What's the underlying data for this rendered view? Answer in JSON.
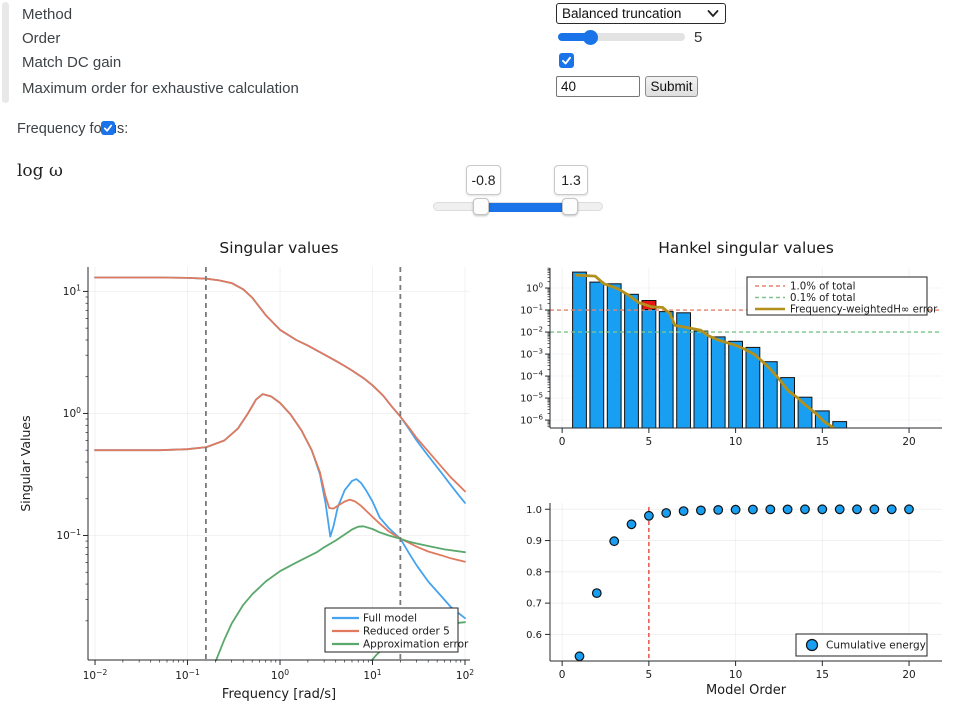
{
  "form": {
    "method_label": "Method",
    "method_value": "Balanced truncation",
    "order_label": "Order",
    "order_value": "5",
    "match_label": "Match DC gain",
    "match_checked": true,
    "max_label": "Maximum order for exhaustive calculation",
    "max_value": "40",
    "submit_label": "Submit"
  },
  "frequency_focus": {
    "label": "Frequency focus:",
    "checked": true
  },
  "omega": {
    "label": "log ω",
    "low": "-0.8",
    "high": "1.3"
  },
  "accent_color": "#1a73e8",
  "chart_data": [
    {
      "id": "sigma",
      "type": "line",
      "title": "Singular values",
      "xlabel": "Frequency [rad/s]",
      "ylabel": "Singular Values",
      "xscale": "log",
      "yscale": "log",
      "xlim_log": [
        -2.076,
        2.054
      ],
      "ylim_log": [
        -2.02,
        1.2
      ],
      "xticks": [
        -2,
        -1,
        0,
        1,
        2
      ],
      "yticks": [
        -1,
        0,
        1
      ],
      "vlines": {
        "values": [
          0.158,
          20
        ],
        "color": "#7a7a7a",
        "note": "frequency focus band 10^-0.8 to 10^1.3"
      },
      "legend_box": [
        325,
        608,
        133,
        44
      ],
      "legend_entries": [
        {
          "label": "Full model",
          "color": "#45a3ef"
        },
        {
          "label": "Reduced order 5",
          "color": "#df7a5e"
        },
        {
          "label": "Approximation error",
          "color": "#5aa86c"
        }
      ],
      "series": [
        {
          "name": "Full model sigma1",
          "color": "#45a3ef",
          "points": [
            [
              0.01,
              13
            ],
            [
              0.05,
              13
            ],
            [
              0.1,
              12.9
            ],
            [
              0.16,
              12.7
            ],
            [
              0.22,
              12.3
            ],
            [
              0.3,
              11.7
            ],
            [
              0.4,
              10.4
            ],
            [
              0.5,
              8.9
            ],
            [
              0.7,
              6.4
            ],
            [
              1,
              4.85
            ],
            [
              1.5,
              4.0
            ],
            [
              2,
              3.6
            ],
            [
              3,
              3.05
            ],
            [
              4,
              2.7
            ],
            [
              5,
              2.45
            ],
            [
              6,
              2.25
            ],
            [
              8,
              1.95
            ],
            [
              10,
              1.7
            ],
            [
              13,
              1.4
            ],
            [
              16,
              1.15
            ],
            [
              20,
              0.94
            ],
            [
              25,
              0.74
            ],
            [
              30,
              0.6
            ],
            [
              40,
              0.45
            ],
            [
              55,
              0.33
            ],
            [
              70,
              0.26
            ],
            [
              85,
              0.215
            ],
            [
              100,
              0.185
            ]
          ]
        },
        {
          "name": "Full model sigma2",
          "color": "#45a3ef",
          "points": [
            [
              0.01,
              0.5
            ],
            [
              0.05,
              0.5
            ],
            [
              0.1,
              0.51
            ],
            [
              0.16,
              0.53
            ],
            [
              0.25,
              0.6
            ],
            [
              0.35,
              0.75
            ],
            [
              0.45,
              1.0
            ],
            [
              0.55,
              1.3
            ],
            [
              0.65,
              1.44
            ],
            [
              0.8,
              1.38
            ],
            [
              1,
              1.22
            ],
            [
              1.3,
              0.98
            ],
            [
              1.7,
              0.73
            ],
            [
              2.2,
              0.5
            ],
            [
              2.7,
              0.32
            ],
            [
              3.1,
              0.185
            ],
            [
              3.5,
              0.098
            ],
            [
              3.8,
              0.12
            ],
            [
              4.2,
              0.17
            ],
            [
              5,
              0.235
            ],
            [
              6,
              0.28
            ],
            [
              6.7,
              0.29
            ],
            [
              7.5,
              0.27
            ],
            [
              8.5,
              0.235
            ],
            [
              10,
              0.19
            ],
            [
              12,
              0.14
            ],
            [
              15,
              0.115
            ],
            [
              20,
              0.094
            ],
            [
              25,
              0.071
            ],
            [
              30,
              0.057
            ],
            [
              40,
              0.042
            ],
            [
              55,
              0.032
            ],
            [
              70,
              0.026
            ],
            [
              100,
              0.021
            ]
          ]
        },
        {
          "name": "Reduced order 5 sigma1",
          "color": "#df7a5e",
          "points": [
            [
              0.01,
              13
            ],
            [
              0.05,
              13
            ],
            [
              0.1,
              12.9
            ],
            [
              0.16,
              12.7
            ],
            [
              0.22,
              12.3
            ],
            [
              0.3,
              11.7
            ],
            [
              0.4,
              10.4
            ],
            [
              0.5,
              8.9
            ],
            [
              0.7,
              6.4
            ],
            [
              1,
              4.85
            ],
            [
              1.5,
              4.0
            ],
            [
              2,
              3.6
            ],
            [
              3,
              3.05
            ],
            [
              4,
              2.7
            ],
            [
              5,
              2.45
            ],
            [
              6,
              2.25
            ],
            [
              8,
              1.95
            ],
            [
              10,
              1.7
            ],
            [
              13,
              1.4
            ],
            [
              16,
              1.15
            ],
            [
              20,
              0.94
            ],
            [
              25,
              0.76
            ],
            [
              30,
              0.63
            ],
            [
              40,
              0.49
            ],
            [
              55,
              0.37
            ],
            [
              70,
              0.3
            ],
            [
              85,
              0.26
            ],
            [
              100,
              0.23
            ]
          ]
        },
        {
          "name": "Reduced order 5 sigma2",
          "color": "#df7a5e",
          "points": [
            [
              0.01,
              0.5
            ],
            [
              0.05,
              0.5
            ],
            [
              0.1,
              0.51
            ],
            [
              0.16,
              0.53
            ],
            [
              0.25,
              0.6
            ],
            [
              0.35,
              0.75
            ],
            [
              0.45,
              1.0
            ],
            [
              0.55,
              1.3
            ],
            [
              0.65,
              1.44
            ],
            [
              0.8,
              1.38
            ],
            [
              1,
              1.22
            ],
            [
              1.3,
              0.98
            ],
            [
              1.7,
              0.73
            ],
            [
              2.2,
              0.5
            ],
            [
              2.7,
              0.33
            ],
            [
              3.1,
              0.21
            ],
            [
              3.4,
              0.168
            ],
            [
              3.8,
              0.166
            ],
            [
              4.2,
              0.175
            ],
            [
              5,
              0.19
            ],
            [
              5.7,
              0.197
            ],
            [
              6.5,
              0.19
            ],
            [
              7.5,
              0.175
            ],
            [
              8.5,
              0.16
            ],
            [
              10,
              0.142
            ],
            [
              12,
              0.125
            ],
            [
              15,
              0.108
            ],
            [
              20,
              0.094
            ],
            [
              25,
              0.087
            ],
            [
              30,
              0.081
            ],
            [
              40,
              0.074
            ],
            [
              55,
              0.069
            ],
            [
              70,
              0.065
            ],
            [
              100,
              0.061
            ]
          ]
        },
        {
          "name": "Approximation error sigma1",
          "color": "#5aa86c",
          "points": [
            [
              0.2,
              0.0092
            ],
            [
              0.25,
              0.014
            ],
            [
              0.3,
              0.019
            ],
            [
              0.4,
              0.027
            ],
            [
              0.5,
              0.033
            ],
            [
              0.7,
              0.042
            ],
            [
              1,
              0.051
            ],
            [
              1.5,
              0.06
            ],
            [
              2,
              0.067
            ],
            [
              2.5,
              0.073
            ],
            [
              3,
              0.08
            ],
            [
              4,
              0.091
            ],
            [
              5,
              0.102
            ],
            [
              6,
              0.112
            ],
            [
              7,
              0.118
            ],
            [
              8,
              0.119
            ],
            [
              10,
              0.113
            ],
            [
              12,
              0.106
            ],
            [
              15,
              0.1
            ],
            [
              20,
              0.094
            ],
            [
              25,
              0.089
            ],
            [
              30,
              0.086
            ],
            [
              40,
              0.082
            ],
            [
              60,
              0.077
            ],
            [
              100,
              0.073
            ]
          ]
        },
        {
          "name": "Approximation error sigma2",
          "color": "#5aa86c",
          "points": [
            [
              9,
              0.0088
            ],
            [
              11,
              0.0105
            ],
            [
              14,
              0.0125
            ],
            [
              20,
              0.015
            ],
            [
              30,
              0.017
            ],
            [
              50,
              0.0185
            ],
            [
              100,
              0.0195
            ]
          ]
        }
      ]
    },
    {
      "id": "hankel",
      "type": "bar",
      "title": "Hankel singular values",
      "yscale": "log",
      "xlim": [
        -0.7,
        21.9
      ],
      "ylim_log": [
        -6.36,
        0.91
      ],
      "xticks": [
        0,
        5,
        10,
        15,
        20
      ],
      "ytick_exps": [
        0,
        -1,
        -2,
        -3,
        -4,
        -5,
        -6
      ],
      "bars": {
        "color": "#189ff2",
        "x": [
          1,
          2,
          3,
          4,
          5,
          6,
          7,
          8,
          9,
          10,
          11,
          12,
          13,
          14,
          15,
          16
        ],
        "values": [
          5.3,
          1.85,
          1.55,
          0.52,
          0.27,
          0.085,
          0.075,
          0.011,
          0.006,
          0.0038,
          0.002,
          0.00045,
          8.5e-05,
          1.1e-05,
          2.6e-06,
          8.5e-07
        ]
      },
      "highlight_bar": {
        "x": 5,
        "top": 0.27,
        "bottom": 0.105,
        "color": "#e91414"
      },
      "hlines": [
        {
          "value": 0.1,
          "label": "1.0% of total",
          "color": "#e5836b"
        },
        {
          "value": 0.01,
          "label": "0.1% of total",
          "color": "#7cc48b"
        }
      ],
      "error_line": {
        "label": "Frequency-weightedH∞ error",
        "color": "#b3901c",
        "points": [
          [
            0.8,
            3.85
          ],
          [
            1.9,
            3.5
          ],
          [
            2.4,
            1.58
          ],
          [
            3.2,
            0.93
          ],
          [
            3.8,
            0.49
          ],
          [
            4.4,
            0.22
          ],
          [
            5.15,
            0.14
          ],
          [
            5.8,
            0.13
          ],
          [
            6.2,
            0.07
          ],
          [
            6.5,
            0.02
          ],
          [
            7.3,
            0.0155
          ],
          [
            8.0,
            0.012
          ],
          [
            8.4,
            0.007
          ],
          [
            9.05,
            0.0042
          ],
          [
            10,
            0.0025
          ],
          [
            10.5,
            0.0017
          ],
          [
            11.05,
            0.001
          ],
          [
            11.5,
            0.0005
          ],
          [
            12,
            0.00021
          ],
          [
            12.6,
            5.9e-05
          ],
          [
            13.05,
            2.1e-05
          ],
          [
            13.6,
            1e-05
          ],
          [
            14,
            5e-06
          ],
          [
            14.6,
            2.1e-06
          ],
          [
            15.1,
            8.5e-07
          ],
          [
            15.7,
            4.2e-07
          ],
          [
            16.2,
            3e-07
          ]
        ]
      },
      "legend_box": [
        747,
        277,
        180,
        38
      ],
      "legend_entries": [
        {
          "label": "1.0% of total",
          "color": "#e5836b",
          "dash": "4 3",
          "width": 1.4
        },
        {
          "label": "0.1% of total",
          "color": "#7cc48b",
          "dash": "4 3",
          "width": 1.4
        },
        {
          "label": "Frequency-weightedH∞ error",
          "color": "#b3901c",
          "dash": "none",
          "width": 2.6
        }
      ]
    },
    {
      "id": "cumulative",
      "type": "scatter",
      "xlabel": "Model Order",
      "xlim": [
        -0.7,
        21.9
      ],
      "ylim": [
        0.515,
        1.02
      ],
      "xticks": [
        0,
        5,
        10,
        15,
        20
      ],
      "yticks": [
        0.6,
        0.7,
        0.8,
        0.9,
        1.0
      ],
      "marker_color": "#189ff2",
      "x": [
        1,
        2,
        3,
        4,
        5,
        6,
        7,
        8,
        9,
        10,
        11,
        12,
        13,
        14,
        15,
        16,
        17,
        18,
        19,
        20
      ],
      "values": [
        0.53,
        0.732,
        0.898,
        0.952,
        0.979,
        0.988,
        0.994,
        0.9965,
        0.998,
        0.9987,
        0.9992,
        0.9995,
        0.9997,
        0.9998,
        0.99985,
        0.9999,
        0.99995,
        1.0,
        1.0,
        1.0
      ],
      "vline": {
        "x": 5,
        "color": "#e23b2e"
      },
      "legend_box": [
        796,
        634,
        131,
        22
      ],
      "legend_label": "Cumulative energy"
    }
  ]
}
